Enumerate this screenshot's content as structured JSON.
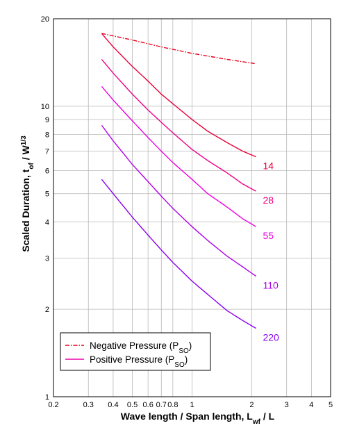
{
  "chart_data": {
    "type": "line",
    "xscale": "log",
    "yscale": "log",
    "xlim": [
      0.2,
      5
    ],
    "ylim": [
      1,
      20
    ],
    "grid": true,
    "x_tick_labels": [
      {
        "value": 0.2,
        "label": "0.2"
      },
      {
        "value": 0.3,
        "label": "0.3"
      },
      {
        "value": 0.4,
        "label": "0.4"
      },
      {
        "value": 0.5,
        "label": "0.5"
      },
      {
        "value": 0.6,
        "label": "0.6"
      },
      {
        "value": 0.7,
        "label": "0.7"
      },
      {
        "value": 0.8,
        "label": "0.8"
      },
      {
        "value": 1,
        "label": "1"
      },
      {
        "value": 2,
        "label": "2"
      },
      {
        "value": 3,
        "label": "3"
      },
      {
        "value": 4,
        "label": "4"
      },
      {
        "value": 5,
        "label": "5"
      }
    ],
    "y_tick_labels": [
      {
        "value": 1,
        "label": "1"
      },
      {
        "value": 2,
        "label": "2"
      },
      {
        "value": 3,
        "label": "3"
      },
      {
        "value": 4,
        "label": "4"
      },
      {
        "value": 5,
        "label": "5"
      },
      {
        "value": 6,
        "label": "6"
      },
      {
        "value": 7,
        "label": "7"
      },
      {
        "value": 8,
        "label": "8"
      },
      {
        "value": 9,
        "label": "9"
      },
      {
        "value": 10,
        "label": "10"
      },
      {
        "value": 20,
        "label": "20"
      }
    ],
    "xlabel": {
      "main": "Wave length / Span length, L",
      "sub": "wf",
      "tail": " / L"
    },
    "ylabel": {
      "main": "Scaled Duration, t",
      "sub": "of",
      "mid": " / W",
      "sup": "1/3"
    },
    "legend": {
      "placement": "bottom-left",
      "entries": [
        {
          "text": "Negative Pressure (P",
          "sub": "SO",
          "tail": ")",
          "style": "dashdot",
          "color": "#e8001c"
        },
        {
          "text": "Positive Pressure (P",
          "sub": "SO",
          "tail": ")",
          "style": "solid",
          "color": "#ee00aa"
        }
      ]
    },
    "series": [
      {
        "label": "",
        "style": "dashdot",
        "color": "#e8001c",
        "x": [
          0.35,
          0.5,
          0.7,
          1.0,
          1.5,
          2.1
        ],
        "y": [
          17.8,
          16.9,
          16.0,
          15.2,
          14.5,
          14.0
        ]
      },
      {
        "label": "14",
        "style": "solid",
        "color": "#e8003c",
        "x": [
          0.35,
          0.4,
          0.5,
          0.6,
          0.7,
          0.8,
          1.0,
          1.2,
          1.5,
          1.8,
          2.1
        ],
        "y": [
          17.8,
          16.0,
          13.7,
          12.2,
          11.0,
          10.2,
          9.0,
          8.2,
          7.5,
          7.0,
          6.7
        ]
      },
      {
        "label": "28",
        "style": "solid",
        "color": "#ee0088",
        "x": [
          0.35,
          0.4,
          0.5,
          0.6,
          0.7,
          0.8,
          1.0,
          1.2,
          1.5,
          1.8,
          2.1
        ],
        "y": [
          14.5,
          13.0,
          11.0,
          9.7,
          8.8,
          8.1,
          7.1,
          6.5,
          5.9,
          5.4,
          5.1
        ]
      },
      {
        "label": "55",
        "style": "solid",
        "color": "#ee00dd",
        "x": [
          0.35,
          0.4,
          0.5,
          0.6,
          0.7,
          0.8,
          1.0,
          1.2,
          1.5,
          1.8,
          2.1
        ],
        "y": [
          11.7,
          10.5,
          8.9,
          7.8,
          7.0,
          6.4,
          5.6,
          5.0,
          4.5,
          4.1,
          3.85
        ]
      },
      {
        "label": "110",
        "style": "solid",
        "color": "#b000e8",
        "x": [
          0.35,
          0.4,
          0.5,
          0.6,
          0.7,
          0.8,
          1.0,
          1.2,
          1.5,
          1.8,
          2.1
        ],
        "y": [
          8.6,
          7.6,
          6.3,
          5.5,
          4.9,
          4.45,
          3.85,
          3.45,
          3.05,
          2.8,
          2.6
        ]
      },
      {
        "label": "220",
        "style": "solid",
        "color": "#8a00f0",
        "x": [
          0.35,
          0.4,
          0.5,
          0.6,
          0.7,
          0.8,
          1.0,
          1.2,
          1.5,
          1.8,
          2.1
        ],
        "y": [
          5.6,
          5.0,
          4.15,
          3.6,
          3.2,
          2.9,
          2.5,
          2.25,
          1.98,
          1.83,
          1.72
        ]
      }
    ]
  }
}
